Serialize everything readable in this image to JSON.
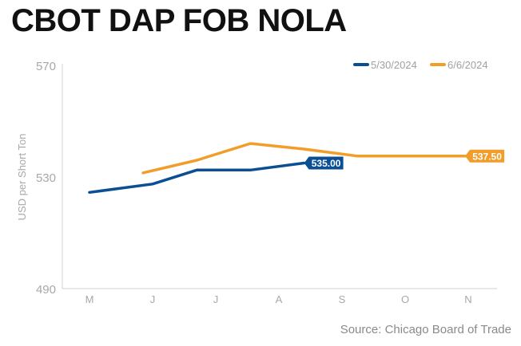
{
  "title": "CBOT DAP FOB NOLA",
  "source": "Source: Chicago Board of Trade",
  "chart_data": {
    "type": "line",
    "title": "CBOT DAP FOB NOLA",
    "xlabel": "",
    "ylabel": "USD per Short Ton",
    "categories": [
      "M",
      "J",
      "J",
      "A",
      "S",
      "O",
      "N"
    ],
    "ylim": [
      490,
      570
    ],
    "yticks": [
      490,
      530,
      570
    ],
    "grid": false,
    "legend_position": "top-right",
    "series": [
      {
        "name": "5/30/2024",
        "color": "#0a4f94",
        "x": [
          0,
          1,
          1.7,
          2.55,
          3.4
        ],
        "values": [
          524.5,
          527.5,
          532.5,
          532.5,
          535
        ],
        "end_label": "535.00"
      },
      {
        "name": "6/6/2024",
        "color": "#f29d2a",
        "x": [
          0.85,
          1.7,
          2.55,
          3.4,
          4.25,
          5.1,
          5.95
        ],
        "values": [
          531.5,
          536,
          542,
          540,
          537.5,
          537.5,
          537.5
        ],
        "end_label": "537.50"
      }
    ]
  }
}
